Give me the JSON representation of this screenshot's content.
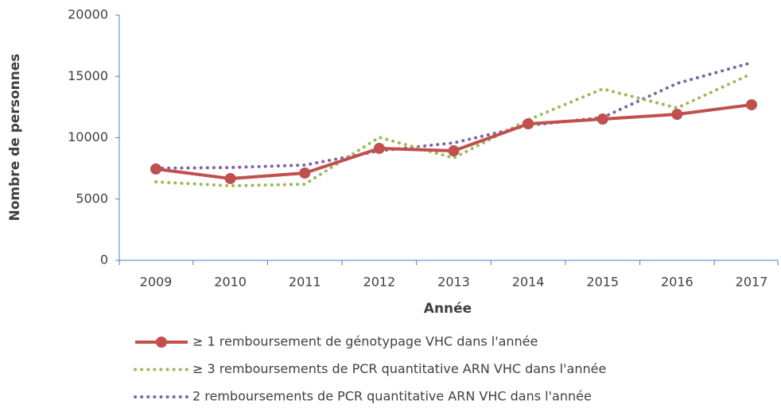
{
  "chart_data": {
    "type": "line",
    "x_label": "Année",
    "y_label": "Nombre de personnes",
    "categories": [
      "2009",
      "2010",
      "2011",
      "2012",
      "2013",
      "2014",
      "2015",
      "2016",
      "2017"
    ],
    "series": [
      {
        "name": "≥ 1 remboursement de génotypage VHC dans l'année",
        "color": "#c0504d",
        "style": "solid",
        "marker": true,
        "values": [
          7450,
          6670,
          7120,
          9130,
          8930,
          11130,
          11520,
          11910,
          12690
        ]
      },
      {
        "name": "≥ 3 remboursements de PCR quantitative ARN VHC dans l'année",
        "color": "#9bbb59",
        "style": "dotted",
        "marker": false,
        "values": [
          6400,
          6080,
          6210,
          10030,
          8350,
          11460,
          13980,
          12430,
          15210
        ]
      },
      {
        "name": "2 remboursements de PCR quantitative ARN VHC dans l'année",
        "color": "#8064a2",
        "style": "dotted",
        "marker": false,
        "values": [
          7510,
          7570,
          7770,
          8930,
          9580,
          11000,
          11650,
          14430,
          16120
        ]
      }
    ],
    "ylim": [
      0,
      20000
    ],
    "yticks": [
      0,
      5000,
      10000,
      15000,
      20000
    ],
    "grid": false,
    "legend": "bottom"
  }
}
